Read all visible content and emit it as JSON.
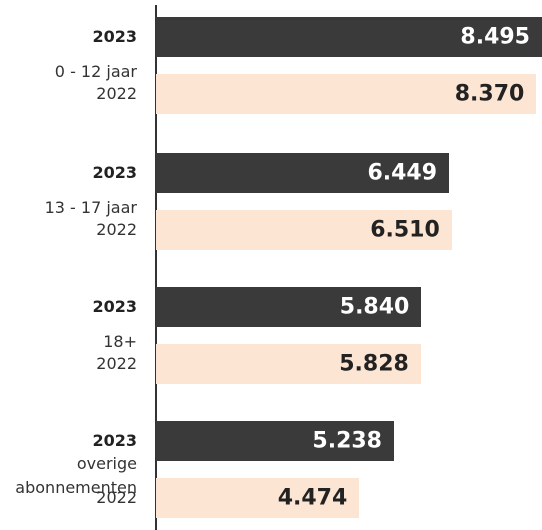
{
  "chart_data": {
    "type": "bar",
    "orientation": "horizontal",
    "categories": [
      "0 - 12 jaar",
      "13 - 17 jaar",
      "18+",
      "overige abonnementen"
    ],
    "series": [
      {
        "name": "2023",
        "color": "#3a3a3a",
        "values": [
          8495,
          6449,
          5840,
          5238
        ],
        "value_labels": [
          "8.495",
          "6.449",
          "5.840",
          "5.238"
        ]
      },
      {
        "name": "2022",
        "color": "#fde5d3",
        "values": [
          8370,
          6510,
          5828,
          4474
        ],
        "value_labels": [
          "8.370",
          "6.510",
          "5.828",
          "4.474"
        ]
      }
    ]
  }
}
